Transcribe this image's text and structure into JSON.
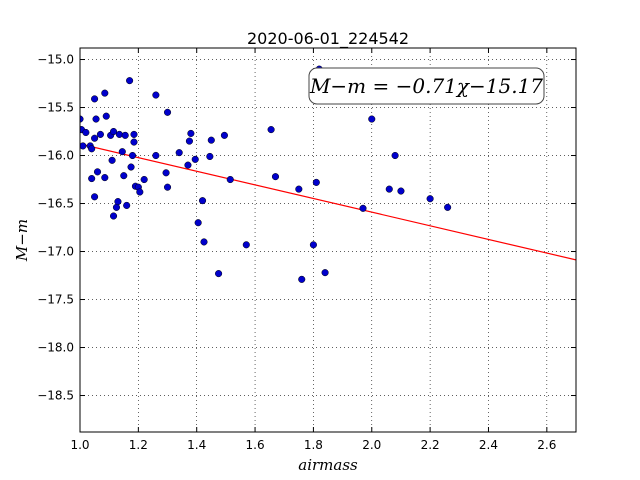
{
  "chart_data": {
    "type": "scatter",
    "title": "2020-06-01_224542",
    "xlabel": "airmass",
    "ylabel": "M−m",
    "xlim": [
      1.0,
      2.7
    ],
    "ylim": [
      -18.88,
      -14.88
    ],
    "y_inverted": true,
    "x_ticks": [
      1.0,
      1.2,
      1.4,
      1.6,
      1.8,
      2.0,
      2.2,
      2.4,
      2.6
    ],
    "x_tick_labels": [
      "1.0",
      "1.2",
      "1.4",
      "1.6",
      "1.8",
      "2.0",
      "2.2",
      "2.4",
      "2.6"
    ],
    "y_ticks": [
      -15.0,
      -15.5,
      -16.0,
      -16.5,
      -17.0,
      -17.5,
      -18.0,
      -18.5
    ],
    "y_tick_labels": [
      "−15.0",
      "−15.5",
      "−16.0",
      "−16.5",
      "−17.0",
      "−17.5",
      "−18.0",
      "−18.5"
    ],
    "grid": true,
    "annotation": "M−m = −0.71χ−15.17",
    "fit": {
      "slope": -0.71,
      "intercept": -15.17,
      "color": "#ff0000"
    },
    "point_color": "#0000cc",
    "points": [
      [
        1.0,
        -15.62
      ],
      [
        1.005,
        -15.73
      ],
      [
        1.01,
        -15.9
      ],
      [
        1.02,
        -15.76
      ],
      [
        1.035,
        -15.9
      ],
      [
        1.04,
        -15.93
      ],
      [
        1.04,
        -16.24
      ],
      [
        1.05,
        -15.82
      ],
      [
        1.05,
        -16.43
      ],
      [
        1.05,
        -15.41
      ],
      [
        1.055,
        -15.62
      ],
      [
        1.06,
        -16.17
      ],
      [
        1.07,
        -15.78
      ],
      [
        1.085,
        -15.35
      ],
      [
        1.085,
        -16.23
      ],
      [
        1.09,
        -15.59
      ],
      [
        1.105,
        -15.79
      ],
      [
        1.11,
        -16.05
      ],
      [
        1.115,
        -15.75
      ],
      [
        1.115,
        -16.63
      ],
      [
        1.125,
        -16.54
      ],
      [
        1.13,
        -16.48
      ],
      [
        1.135,
        -15.78
      ],
      [
        1.145,
        -15.96
      ],
      [
        1.15,
        -16.21
      ],
      [
        1.155,
        -15.79
      ],
      [
        1.16,
        -16.52
      ],
      [
        1.17,
        -15.22
      ],
      [
        1.175,
        -16.12
      ],
      [
        1.18,
        -16.0
      ],
      [
        1.185,
        -15.78
      ],
      [
        1.185,
        -15.86
      ],
      [
        1.19,
        -16.32
      ],
      [
        1.2,
        -16.33
      ],
      [
        1.205,
        -16.38
      ],
      [
        1.22,
        -16.25
      ],
      [
        1.26,
        -15.37
      ],
      [
        1.26,
        -16.0
      ],
      [
        1.295,
        -16.18
      ],
      [
        1.3,
        -16.33
      ],
      [
        1.3,
        -15.55
      ],
      [
        1.34,
        -15.97
      ],
      [
        1.37,
        -16.1
      ],
      [
        1.375,
        -15.85
      ],
      [
        1.38,
        -15.77
      ],
      [
        1.395,
        -16.04
      ],
      [
        1.405,
        -16.7
      ],
      [
        1.42,
        -16.47
      ],
      [
        1.425,
        -16.9
      ],
      [
        1.445,
        -16.01
      ],
      [
        1.45,
        -15.84
      ],
      [
        1.475,
        -17.23
      ],
      [
        1.495,
        -15.79
      ],
      [
        1.515,
        -16.25
      ],
      [
        1.57,
        -16.93
      ],
      [
        1.655,
        -15.73
      ],
      [
        1.67,
        -16.22
      ],
      [
        1.75,
        -16.35
      ],
      [
        1.76,
        -17.29
      ],
      [
        1.8,
        -16.93
      ],
      [
        1.81,
        -16.28
      ],
      [
        1.82,
        -15.1
      ],
      [
        1.84,
        -17.22
      ],
      [
        1.97,
        -16.55
      ],
      [
        2.0,
        -15.62
      ],
      [
        2.06,
        -16.35
      ],
      [
        2.08,
        -16.0
      ],
      [
        2.1,
        -16.37
      ],
      [
        2.2,
        -16.45
      ],
      [
        2.26,
        -16.54
      ]
    ]
  }
}
